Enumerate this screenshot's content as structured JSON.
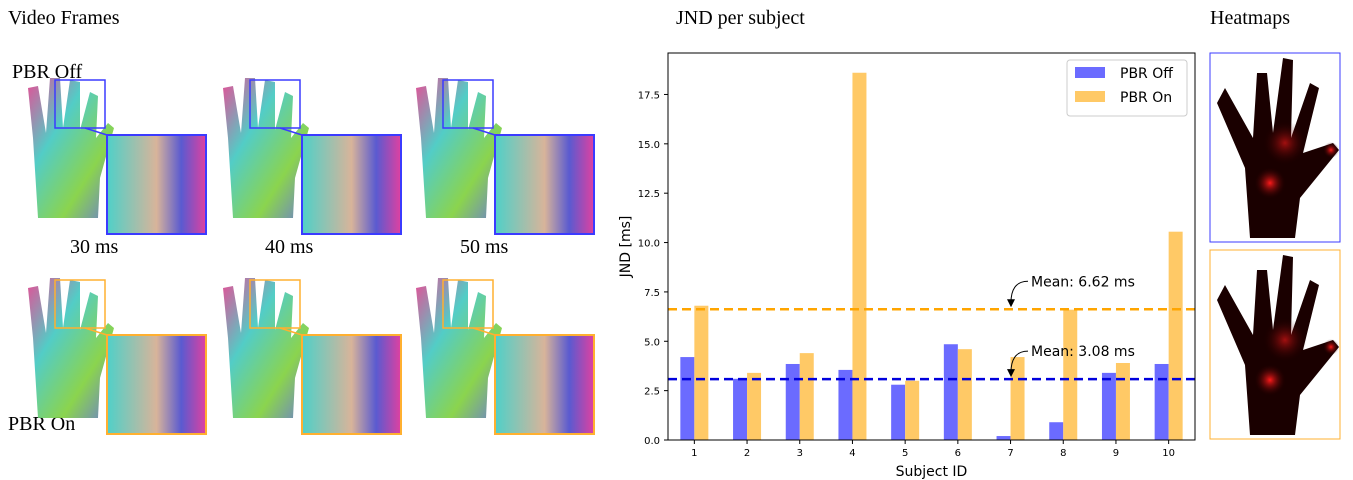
{
  "figure": {
    "left_title": "Video Frames",
    "middle_title": "JND per subject",
    "right_title": "Heatmaps",
    "row_labels": [
      "PBR Off",
      "PBR On"
    ],
    "column_labels": [
      "30 ms",
      "40 ms",
      "50 ms"
    ]
  },
  "chart_data": {
    "type": "bar",
    "x_label": "Subject ID",
    "y_label": "JND [ms]",
    "categories": [
      "1",
      "2",
      "3",
      "4",
      "5",
      "6",
      "7",
      "8",
      "9",
      "10"
    ],
    "series": [
      {
        "name": "PBR Off",
        "color": "#6b6bff",
        "values": [
          4.2,
          3.1,
          3.85,
          3.55,
          2.8,
          4.85,
          0.2,
          0.9,
          3.4,
          3.85
        ]
      },
      {
        "name": "PBR On",
        "color": "#ffc966",
        "values": [
          6.8,
          3.4,
          4.4,
          18.6,
          3.0,
          4.6,
          4.2,
          6.6,
          3.9,
          10.55
        ]
      }
    ],
    "ylim": [
      0,
      19.6
    ],
    "yticks": [
      {
        "value": 0,
        "label": "0.0"
      },
      {
        "value": 2.5,
        "label": "2.5"
      },
      {
        "value": 5,
        "label": "5.0"
      },
      {
        "value": 7.5,
        "label": "7.5"
      },
      {
        "value": 10,
        "label": "10.0"
      },
      {
        "value": 12.5,
        "label": "12.5"
      },
      {
        "value": 15,
        "label": "15.0"
      },
      {
        "value": 17.5,
        "label": "17.5"
      }
    ],
    "mean_lines": [
      {
        "value": 6.62,
        "label": "Mean: 6.62 ms",
        "color": "#ffa500"
      },
      {
        "value": 3.08,
        "label": "Mean: 3.08 ms",
        "color": "#0000dd"
      }
    ],
    "legend": "upper right"
  }
}
